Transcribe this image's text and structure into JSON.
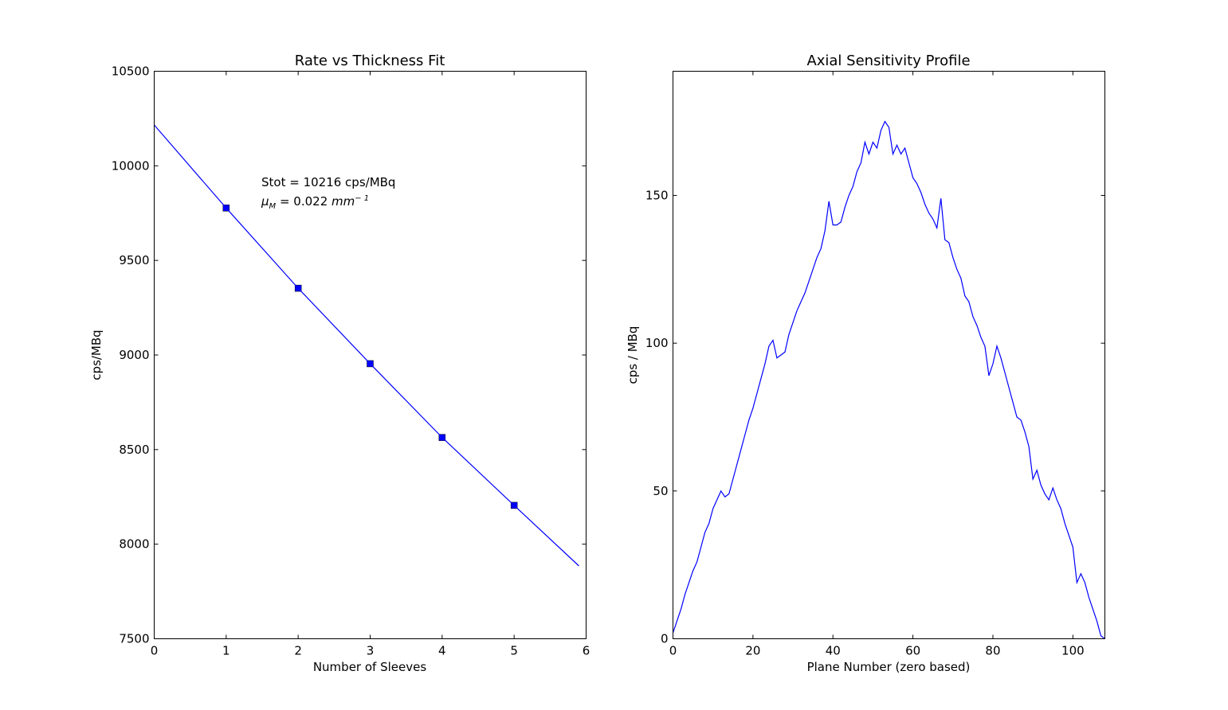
{
  "figure": {
    "background": "#ffffff",
    "line_color": "#0000ff",
    "marker_color": "#0000ff"
  },
  "chart_data": [
    {
      "type": "line",
      "title": "Rate vs Thickness Fit",
      "xlabel": "Number of Sleeves",
      "ylabel": "cps/MBq",
      "xlim": [
        0,
        6
      ],
      "ylim": [
        7500,
        10500
      ],
      "xticks": [
        0,
        1,
        2,
        3,
        4,
        5,
        6
      ],
      "yticks": [
        7500,
        8000,
        8500,
        9000,
        9500,
        10000,
        10500
      ],
      "grid": false,
      "series": [
        {
          "style": "markers",
          "marker": "square",
          "x": [
            1,
            2,
            3,
            4,
            5
          ],
          "y": [
            9777,
            9353,
            8954,
            8564,
            8205
          ]
        },
        {
          "style": "line",
          "x": [
            0,
            1,
            2,
            3,
            4,
            5,
            5.9
          ],
          "y": [
            10216,
            9777,
            9353,
            8954,
            8564,
            8205,
            7885
          ]
        }
      ],
      "annotations": [
        {
          "text": "Stot = 10216 cps/MBq",
          "x": 1.5,
          "y": 9890
        },
        {
          "text_symbol": "μ",
          "text_subscript": "M",
          "text_value": " = 0.022 ",
          "text_unit": "mm",
          "text_exponent": "− 1",
          "x": 1.5,
          "y": 9790
        }
      ]
    },
    {
      "type": "line",
      "title": "Axial Sensitivity Profile",
      "xlabel": "Plane Number (zero based)",
      "ylabel": "cps / MBq",
      "xlim": [
        0,
        108
      ],
      "ylim": [
        0,
        192
      ],
      "xticks": [
        0,
        20,
        40,
        60,
        80,
        100
      ],
      "yticks": [
        0,
        50,
        100,
        150
      ],
      "grid": false,
      "series": [
        {
          "style": "line",
          "x": [
            0,
            1,
            2,
            3,
            4,
            5,
            6,
            7,
            8,
            9,
            10,
            11,
            12,
            13,
            14,
            15,
            16,
            17,
            18,
            19,
            20,
            21,
            22,
            23,
            24,
            25,
            26,
            27,
            28,
            29,
            30,
            31,
            32,
            33,
            34,
            35,
            36,
            37,
            38,
            39,
            40,
            41,
            42,
            43,
            44,
            45,
            46,
            47,
            48,
            49,
            50,
            51,
            52,
            53,
            54,
            55,
            56,
            57,
            58,
            59,
            60,
            61,
            62,
            63,
            64,
            65,
            66,
            67,
            68,
            69,
            70,
            71,
            72,
            73,
            74,
            75,
            76,
            77,
            78,
            79,
            80,
            81,
            82,
            83,
            84,
            85,
            86,
            87,
            88,
            89,
            90,
            91,
            92,
            93,
            94,
            95,
            96,
            97,
            98,
            99,
            100,
            101,
            102,
            103,
            104,
            105,
            106,
            107,
            108
          ],
          "y": [
            2,
            6,
            10,
            15,
            19,
            23,
            26,
            31,
            36,
            39,
            44,
            47,
            50,
            48,
            49,
            54,
            59,
            64,
            69,
            74,
            78,
            83,
            88,
            93,
            99,
            101,
            95,
            96,
            97,
            103,
            107,
            111,
            114,
            117,
            121,
            125,
            129,
            132,
            138,
            148,
            140,
            140,
            141,
            146,
            150,
            153,
            158,
            161,
            168,
            164,
            168,
            166,
            172,
            175,
            173,
            164,
            167,
            164,
            166,
            161,
            156,
            154,
            151,
            147,
            144,
            142,
            139,
            149,
            135,
            134,
            129,
            125,
            122,
            116,
            114,
            109,
            106,
            102,
            99,
            89,
            93,
            99,
            95,
            90,
            85,
            80,
            75,
            74,
            70,
            65,
            54,
            57,
            52,
            49,
            47,
            51,
            47,
            44,
            39,
            35,
            31,
            19,
            22,
            19,
            14,
            10,
            6,
            1,
            0
          ]
        }
      ]
    }
  ]
}
